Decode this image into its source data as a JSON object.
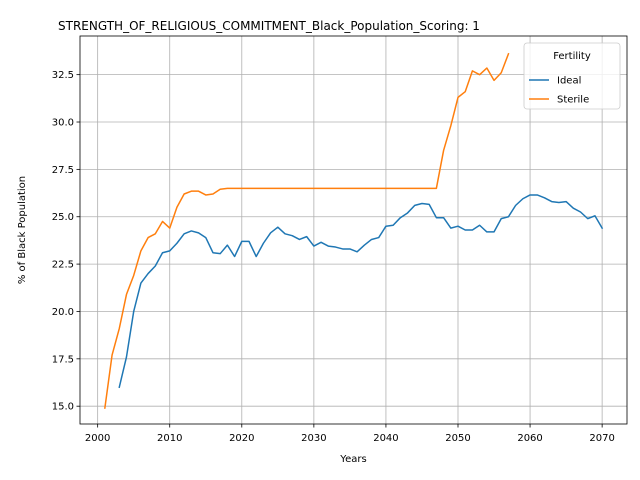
{
  "chart_data": {
    "type": "line",
    "title": "STRENGTH_OF_RELIGIOUS_COMMITMENT_Black_Population_Scoring: 1",
    "xlabel": "Years",
    "ylabel": "% of Black Population",
    "xlim": [
      1997.55,
      2073.45
    ],
    "ylim": [
      14.06,
      34.54
    ],
    "x_ticks": [
      2000,
      2010,
      2020,
      2030,
      2040,
      2050,
      2060,
      2070
    ],
    "y_ticks": [
      15.0,
      17.5,
      20.0,
      22.5,
      25.0,
      27.5,
      30.0,
      32.5
    ],
    "y_tick_labels": [
      "15.0",
      "17.5",
      "20.0",
      "22.5",
      "25.0",
      "27.5",
      "30.0",
      "32.5"
    ],
    "grid": true,
    "legend": {
      "title": "Fertility",
      "placement": "top-right"
    },
    "series": [
      {
        "name": "Ideal",
        "color": "#1f77b4",
        "x": [
          2003,
          2004,
          2005,
          2006,
          2007,
          2008,
          2009,
          2010,
          2011,
          2012,
          2013,
          2014,
          2015,
          2016,
          2017,
          2018,
          2019,
          2020,
          2021,
          2022,
          2023,
          2024,
          2025,
          2026,
          2027,
          2028,
          2029,
          2030,
          2031,
          2032,
          2033,
          2034,
          2035,
          2036,
          2037,
          2038,
          2039,
          2040,
          2041,
          2042,
          2043,
          2044,
          2045,
          2046,
          2047,
          2048,
          2049,
          2050,
          2051,
          2052,
          2053,
          2054,
          2055,
          2056,
          2057,
          2058,
          2059,
          2060,
          2061,
          2062,
          2063,
          2064,
          2065,
          2066,
          2067,
          2068,
          2069,
          2070
        ],
        "values": [
          16.0,
          17.6,
          20.0,
          21.5,
          22.0,
          22.4,
          23.1,
          23.2,
          23.6,
          24.1,
          24.25,
          24.15,
          23.9,
          23.1,
          23.05,
          23.5,
          22.9,
          23.7,
          23.7,
          22.9,
          23.6,
          24.15,
          24.45,
          24.1,
          24.0,
          23.8,
          23.95,
          23.45,
          23.65,
          23.45,
          23.4,
          23.3,
          23.3,
          23.15,
          23.5,
          23.8,
          23.9,
          24.5,
          24.55,
          24.95,
          25.2,
          25.6,
          25.7,
          25.65,
          24.95,
          24.95,
          24.4,
          24.5,
          24.3,
          24.3,
          24.55,
          24.2,
          24.2,
          24.9,
          25.0,
          25.6,
          25.95,
          26.15,
          26.15,
          26.0,
          25.8,
          25.75,
          25.8,
          25.45,
          25.25,
          24.9,
          25.05,
          24.4
        ]
      },
      {
        "name": "Sterile",
        "color": "#ff7f0e",
        "x": [
          2001,
          2002,
          2003,
          2004,
          2005,
          2006,
          2007,
          2008,
          2009,
          2010,
          2011,
          2012,
          2013,
          2014,
          2015,
          2016,
          2017,
          2018,
          2019,
          2020,
          2021,
          2022,
          2023,
          2024,
          2025,
          2026,
          2027,
          2028,
          2029,
          2030,
          2031,
          2032,
          2033,
          2034,
          2035,
          2036,
          2037,
          2038,
          2039,
          2040,
          2041,
          2042,
          2043,
          2044,
          2045,
          2046,
          2047,
          2048,
          2049,
          2050,
          2051,
          2052,
          2053,
          2054,
          2055,
          2056,
          2057
        ],
        "values": [
          14.9,
          17.7,
          19.1,
          20.9,
          21.9,
          23.2,
          23.9,
          24.1,
          24.75,
          24.4,
          25.5,
          26.2,
          26.35,
          26.35,
          26.15,
          26.2,
          26.45,
          26.5,
          26.5,
          26.5,
          26.5,
          26.5,
          26.5,
          26.5,
          26.5,
          26.5,
          26.5,
          26.5,
          26.5,
          26.5,
          26.5,
          26.5,
          26.5,
          26.5,
          26.5,
          26.5,
          26.5,
          26.5,
          26.5,
          26.5,
          26.5,
          26.5,
          26.5,
          26.5,
          26.5,
          26.5,
          26.5,
          28.5,
          29.8,
          31.3,
          31.6,
          32.7,
          32.5,
          32.85,
          32.2,
          32.6,
          33.6
        ]
      }
    ]
  }
}
